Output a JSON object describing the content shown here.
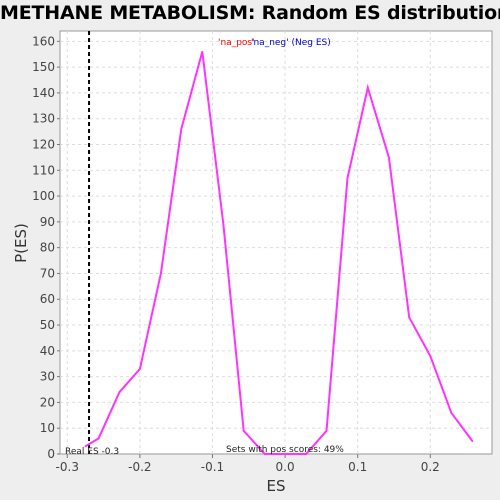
{
  "chart_data": {
    "type": "line",
    "title": "METHANE METABOLISM: Random ES distribution",
    "xlabel": "ES",
    "ylabel": "P(ES)",
    "xlim": [
      -0.31,
      0.285
    ],
    "ylim": [
      0,
      164
    ],
    "x_ticks": [
      -0.3,
      -0.2,
      -0.1,
      0.0,
      0.1,
      0.2
    ],
    "x_tick_labels": [
      "-0.3",
      "-0.2",
      "-0.1",
      "0.0",
      "0.1",
      "0.2"
    ],
    "y_ticks": [
      0,
      10,
      20,
      30,
      40,
      50,
      60,
      70,
      80,
      90,
      100,
      110,
      120,
      130,
      140,
      150,
      160
    ],
    "grid": true,
    "series": [
      {
        "name": "",
        "color": "#ff33ff",
        "x": [
          -0.275,
          -0.257,
          -0.228,
          -0.2,
          -0.171,
          -0.143,
          -0.114,
          -0.085,
          -0.057,
          -0.028,
          0.0,
          0.029,
          0.057,
          0.086,
          0.114,
          0.143,
          0.171,
          0.2,
          0.229,
          0.258
        ],
        "y": [
          3,
          6,
          24,
          33,
          70,
          126,
          156,
          89,
          9,
          0,
          0,
          0,
          9,
          107,
          142,
          115,
          53,
          38,
          16,
          5
        ]
      }
    ],
    "real_es": -0.27,
    "annotations": {
      "legend_pos": "'na_pos'",
      "legend_neg": "'na_neg' (Neg ES)",
      "real_es_label": "Real ES -0.3",
      "pos_scores_label": "Sets with pos scores: 49%"
    },
    "colors": {
      "line": "#ff33ff",
      "legend_pos": "#ff0000",
      "legend_neg": "#0000cc",
      "real_es_line": "#000000",
      "grid": "#dddddd",
      "plot_bg": "#ffffff"
    }
  }
}
